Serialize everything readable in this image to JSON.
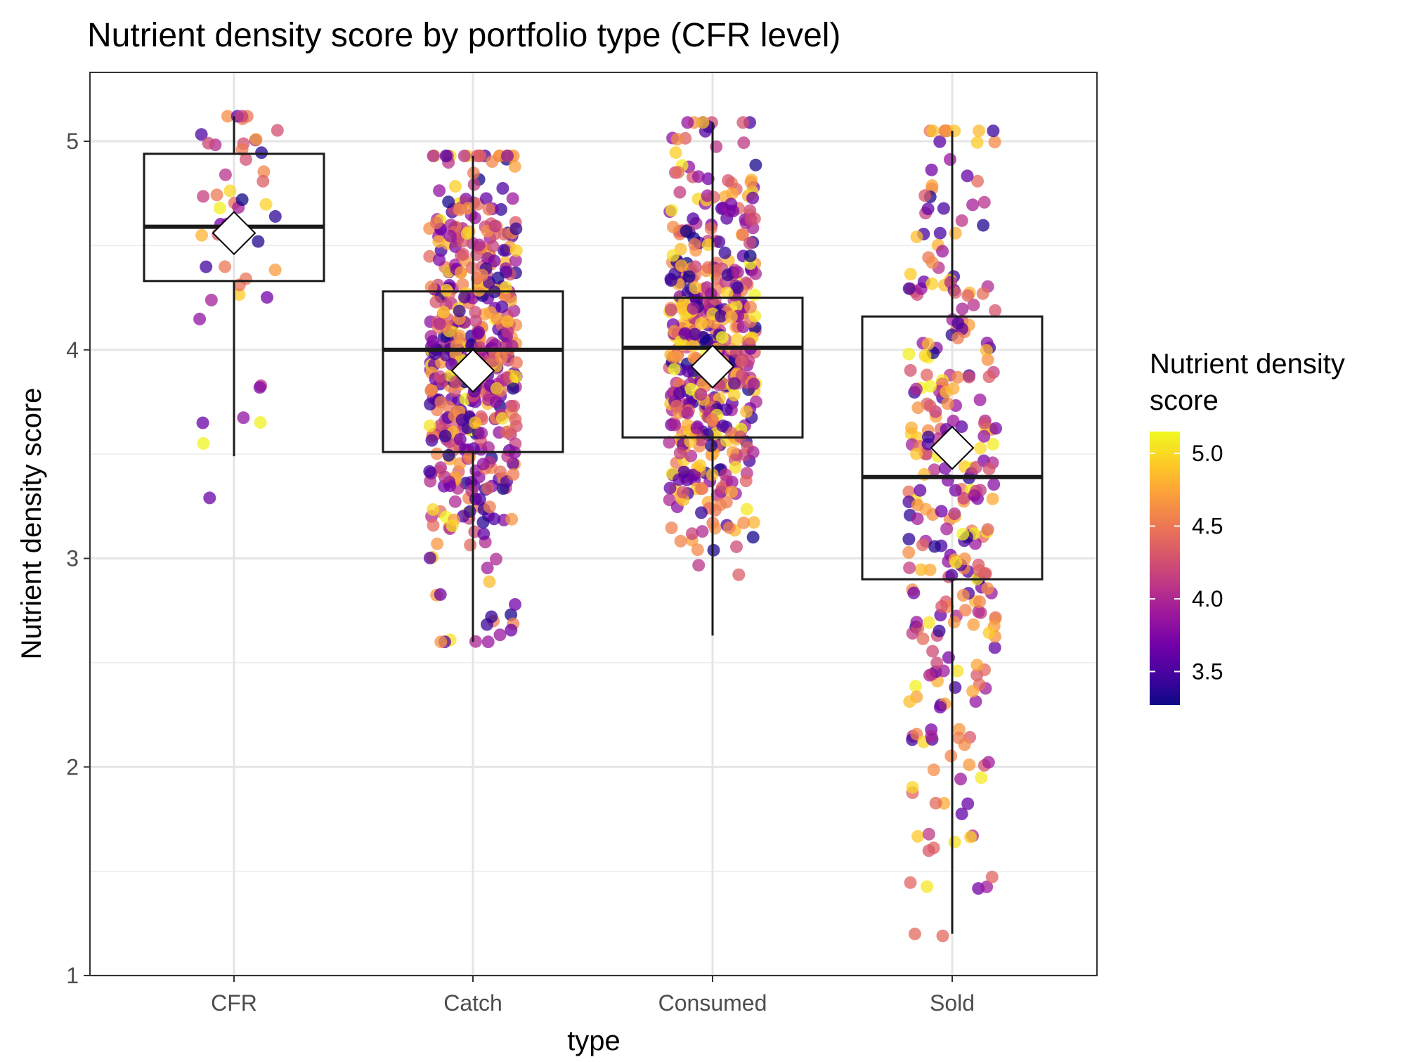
{
  "chart_data": {
    "type": "boxplot",
    "title": "Nutrient density score by portfolio type (CFR level)",
    "xlabel": "type",
    "ylabel": "Nutrient density score",
    "categories": [
      "CFR",
      "Catch",
      "Consumed",
      "Sold"
    ],
    "ylim": [
      1,
      5.3
    ],
    "yticks": [
      1,
      2,
      3,
      4,
      5
    ],
    "grid": true,
    "boxes": [
      {
        "category": "CFR",
        "whisker_low": 3.49,
        "q1": 4.33,
        "median": 4.59,
        "q3": 4.94,
        "whisker_high": 5.12,
        "mean": 4.56,
        "n_points": 45
      },
      {
        "category": "Catch",
        "whisker_low": 2.6,
        "q1": 3.51,
        "median": 4.0,
        "q3": 4.28,
        "whisker_high": 4.93,
        "mean": 3.9,
        "n_points": 520
      },
      {
        "category": "Consumed",
        "whisker_low": 2.63,
        "q1": 3.58,
        "median": 4.01,
        "q3": 4.25,
        "whisker_high": 5.09,
        "mean": 3.92,
        "n_points": 500
      },
      {
        "category": "Sold",
        "whisker_low": 1.2,
        "q1": 2.9,
        "median": 3.39,
        "q3": 4.16,
        "whisker_high": 5.05,
        "mean": 3.53,
        "n_points": 300
      }
    ],
    "outliers": [
      {
        "category": "CFR",
        "value": 3.29
      },
      {
        "category": "CFR",
        "value": 3.65
      },
      {
        "category": "CFR",
        "value": 3.82
      },
      {
        "category": "Sold",
        "value": 1.19
      },
      {
        "category": "Sold",
        "value": 1.64
      },
      {
        "category": "Sold",
        "value": 2.14
      }
    ],
    "points_color_by": "Nutrient density score",
    "legend": {
      "title": "Nutrient density score",
      "title_lines": [
        "Nutrient density",
        "score"
      ],
      "position": "right",
      "range": [
        3.27,
        5.15
      ],
      "ticks": [
        {
          "value": 3.5,
          "label": "3.5"
        },
        {
          "value": 4.0,
          "label": "4.0"
        },
        {
          "value": 4.5,
          "label": "4.5"
        },
        {
          "value": 5.0,
          "label": "5.0"
        }
      ],
      "colormap": [
        "#0d0887",
        "#46039f",
        "#7201a8",
        "#9c179e",
        "#bd3786",
        "#d8576b",
        "#ed7953",
        "#fb9f3a",
        "#fdca26",
        "#f0f921"
      ]
    }
  }
}
